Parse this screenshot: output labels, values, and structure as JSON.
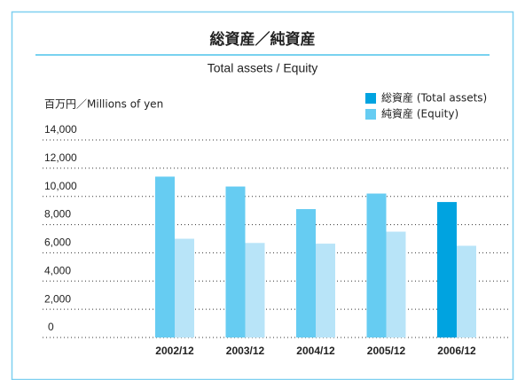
{
  "chart_data": {
    "type": "bar",
    "title": "総資産／純資産",
    "subtitle": "Total assets / Equity",
    "y_axis_label": "百万円／Millions of yen",
    "categories": [
      "2002/12",
      "2003/12",
      "2004/12",
      "2005/12",
      "2006/12"
    ],
    "series": [
      {
        "name": "総資産 (Total assets)",
        "color": "#00a3e0",
        "bar_colors": [
          "#66ccf2",
          "#66ccf2",
          "#66ccf2",
          "#66ccf2",
          "#00a3e0"
        ],
        "values": [
          11400,
          10700,
          9100,
          10200,
          9600
        ]
      },
      {
        "name": "純資産 (Equity)",
        "color": "#66ccf2",
        "bar_colors": [
          "#b8e4f8",
          "#b8e4f8",
          "#b8e4f8",
          "#b8e4f8",
          "#b8e4f8"
        ],
        "values": [
          7000,
          6700,
          6650,
          7500,
          6500
        ]
      }
    ],
    "ylim": [
      0,
      14000
    ],
    "yticks": [
      0,
      {
        "value": 2000,
        "label": "2,000"
      },
      {
        "value": 4000,
        "label": "4,000"
      },
      {
        "value": 6000,
        "label": "6,000"
      },
      {
        "value": 8000,
        "label": "8,000"
      },
      {
        "value": 10000,
        "label": "10,000"
      },
      {
        "value": 12000,
        "label": "12,000"
      },
      {
        "value": 14000,
        "label": "14,000"
      }
    ],
    "grid": true,
    "legend": "top-right"
  }
}
